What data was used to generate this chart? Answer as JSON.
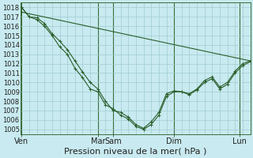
{
  "title": "",
  "xlabel": "Pression niveau de la mer( hPa )",
  "ylabel": "",
  "bg_color": "#c8eaf0",
  "grid_color": "#a0ccd0",
  "line_color": "#2a5e2a",
  "ylim": [
    1004.5,
    1018.5
  ],
  "yticks": [
    1005,
    1006,
    1007,
    1008,
    1009,
    1010,
    1011,
    1012,
    1013,
    1014,
    1015,
    1016,
    1017,
    1018
  ],
  "xtick_labels": [
    "Ven",
    "Mar",
    "Sam",
    "Dim",
    "Lun"
  ],
  "xtick_positions": [
    0,
    3.5,
    4.2,
    7.0,
    10.0
  ],
  "xlim": [
    -0.05,
    10.5
  ],
  "vline_positions": [
    0,
    3.5,
    4.2,
    7.0,
    10.0
  ],
  "line1_x": [
    0,
    0.35,
    0.7,
    1.05,
    1.4,
    1.75,
    2.1,
    2.45,
    2.8,
    3.15,
    3.5,
    3.85,
    4.2,
    4.55,
    4.9,
    5.25,
    5.6,
    5.95,
    6.3,
    6.65,
    7.0,
    7.35,
    7.7,
    8.05,
    8.4,
    8.75,
    9.1,
    9.45,
    9.8,
    10.15,
    10.5
  ],
  "line1_y": [
    1018.0,
    1017.0,
    1016.9,
    1016.3,
    1015.2,
    1014.4,
    1013.5,
    1012.3,
    1011.1,
    1010.0,
    1009.3,
    1008.0,
    1007.0,
    1006.8,
    1006.3,
    1005.5,
    1005.1,
    1005.8,
    1006.8,
    1008.8,
    1009.1,
    1009.0,
    1008.8,
    1009.3,
    1010.2,
    1010.6,
    1009.5,
    1010.0,
    1011.2,
    1012.0,
    1012.3
  ],
  "line2_x": [
    0,
    0.35,
    0.7,
    1.05,
    1.4,
    1.75,
    2.1,
    2.45,
    2.8,
    3.15,
    3.5,
    3.85,
    4.2,
    4.55,
    4.9,
    5.25,
    5.6,
    5.95,
    6.3,
    6.65,
    7.0,
    7.35,
    7.7,
    8.05,
    8.4,
    8.75,
    9.1,
    9.45,
    9.8,
    10.15,
    10.5
  ],
  "line2_y": [
    1018.0,
    1017.0,
    1016.7,
    1016.0,
    1015.0,
    1013.8,
    1013.0,
    1011.5,
    1010.5,
    1009.3,
    1009.0,
    1007.6,
    1007.2,
    1006.5,
    1006.1,
    1005.3,
    1005.0,
    1005.5,
    1006.5,
    1008.5,
    1009.0,
    1009.0,
    1008.7,
    1009.2,
    1010.0,
    1010.4,
    1009.3,
    1009.8,
    1011.0,
    1011.8,
    1012.2
  ],
  "line3_x": [
    0,
    10.5
  ],
  "line3_y": [
    1017.5,
    1012.3
  ],
  "xlabel_fontsize": 8,
  "ytick_fontsize": 6,
  "xtick_fontsize": 7
}
